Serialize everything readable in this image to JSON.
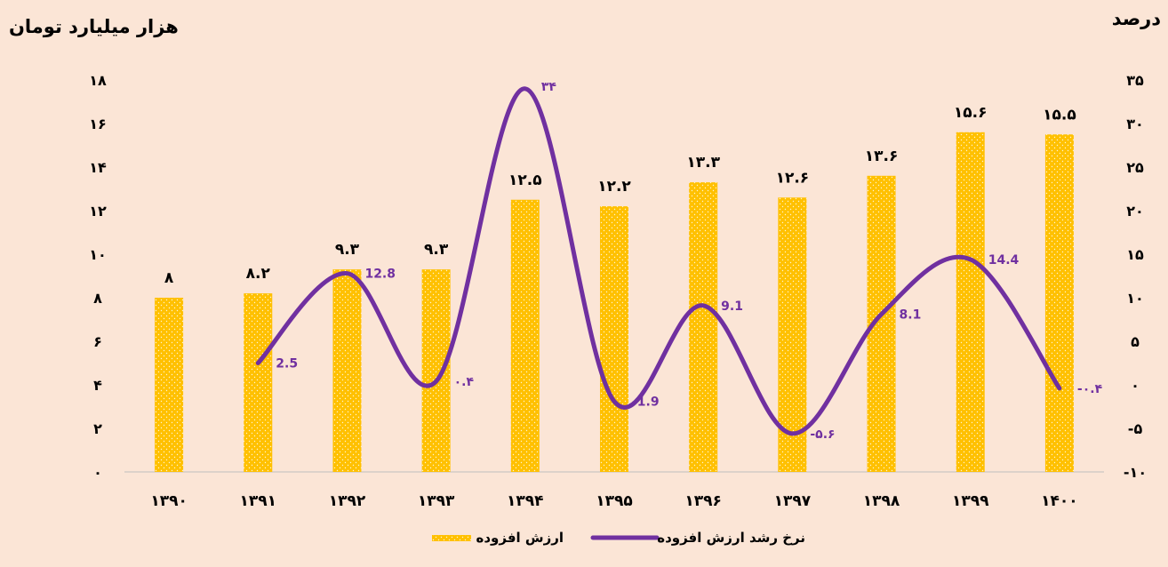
{
  "chart_data": {
    "type": "bar",
    "left_axis_title": "هزار میلیارد تومان",
    "right_axis_title": "درصد",
    "categories": [
      "۱۳۹۰",
      "۱۳۹۱",
      "۱۳۹۲",
      "۱۳۹۳",
      "۱۳۹۴",
      "۱۳۹۵",
      "۱۳۹۶",
      "۱۳۹۷",
      "۱۳۹۸",
      "۱۳۹۹",
      "۱۴۰۰"
    ],
    "bar_series": {
      "name": "ارزش افزوده",
      "values": [
        8,
        8.2,
        9.3,
        9.3,
        12.5,
        12.2,
        13.3,
        12.6,
        13.6,
        15.6,
        15.5
      ],
      "labels": [
        "۸",
        "۸.۲",
        "۹.۳",
        "۹.۳",
        "۱۲.۵",
        "۱۲.۲",
        "۱۳.۳",
        "۱۲.۶",
        "۱۳.۶",
        "۱۵.۶",
        "۱۵.۵"
      ],
      "color": "#ffc000"
    },
    "line_series": {
      "name": "نرخ رشد ارزش افزوده",
      "values": [
        null,
        2.5,
        12.8,
        0.4,
        34,
        -1.9,
        9.1,
        -5.6,
        8.1,
        14.4,
        -0.4
      ],
      "labels": [
        "",
        "2.5",
        "12.8",
        "۰.۴",
        "۳۴",
        "-1.9",
        "9.1",
        "-۵.۶",
        "8.1",
        "14.4",
        "-۰.۴"
      ],
      "color": "#7030a0"
    },
    "left_axis": {
      "ylim": [
        0,
        18
      ],
      "ticks": [
        0,
        2,
        4,
        6,
        8,
        10,
        12,
        14,
        16,
        18
      ],
      "tick_labels": [
        "۰",
        "۲",
        "۴",
        "۶",
        "۸",
        "۱۰",
        "۱۲",
        "۱۴",
        "۱۶",
        "۱۸"
      ]
    },
    "right_axis": {
      "ylim": [
        -10,
        35
      ],
      "ticks": [
        -10,
        -5,
        0,
        5,
        10,
        15,
        20,
        25,
        30,
        35
      ],
      "tick_labels": [
        "-۱۰",
        "-۵",
        "۰",
        "۵",
        "۱۰",
        "۱۵",
        "۲۰",
        "۲۵",
        "۳۰",
        "۳۵"
      ]
    },
    "grid": false,
    "legend_position": "bottom"
  }
}
